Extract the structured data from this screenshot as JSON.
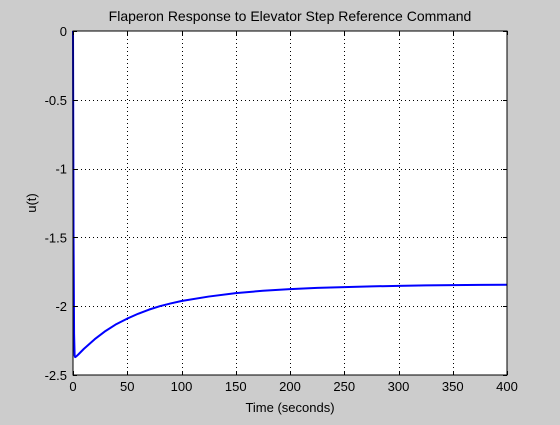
{
  "figure": {
    "background_color": "#cccccc",
    "axes_background_color": "#ffffff",
    "line_color": "#0000ff",
    "grid_color": "#000000"
  },
  "chart_data": {
    "type": "line",
    "title": "Flaperon Response to Elevator Step Reference Command",
    "xlabel": "Time (seconds)",
    "ylabel": "u(t)",
    "xlim": [
      0,
      400
    ],
    "ylim": [
      -2.5,
      0
    ],
    "grid": true,
    "legend": "none",
    "x_ticks": [
      0,
      50,
      100,
      150,
      200,
      250,
      300,
      350,
      400
    ],
    "x_tick_labels": [
      "0",
      "50",
      "100",
      "150",
      "200",
      "250",
      "300",
      "350",
      "400"
    ],
    "y_ticks": [
      0,
      -0.5,
      -1,
      -1.5,
      -2,
      -2.5
    ],
    "y_tick_labels": [
      "0",
      "-0.5",
      "-1",
      "-1.5",
      "-2",
      "-2.5"
    ],
    "series": [
      {
        "color": "#0000ff",
        "x": [
          0,
          0.5,
          1,
          1.5,
          2,
          3,
          5,
          10,
          20,
          30,
          40,
          50,
          60,
          70,
          80,
          90,
          100,
          125,
          150,
          175,
          200,
          225,
          250,
          275,
          300,
          325,
          350,
          375,
          400
        ],
        "y": [
          0,
          -1.5,
          -2.2,
          -2.36,
          -2.37,
          -2.365,
          -2.35,
          -2.31,
          -2.24,
          -2.18,
          -2.13,
          -2.09,
          -2.055,
          -2.025,
          -2.0,
          -1.98,
          -1.962,
          -1.93,
          -1.905,
          -1.888,
          -1.876,
          -1.867,
          -1.861,
          -1.856,
          -1.852,
          -1.849,
          -1.847,
          -1.845,
          -1.844
        ]
      }
    ]
  }
}
